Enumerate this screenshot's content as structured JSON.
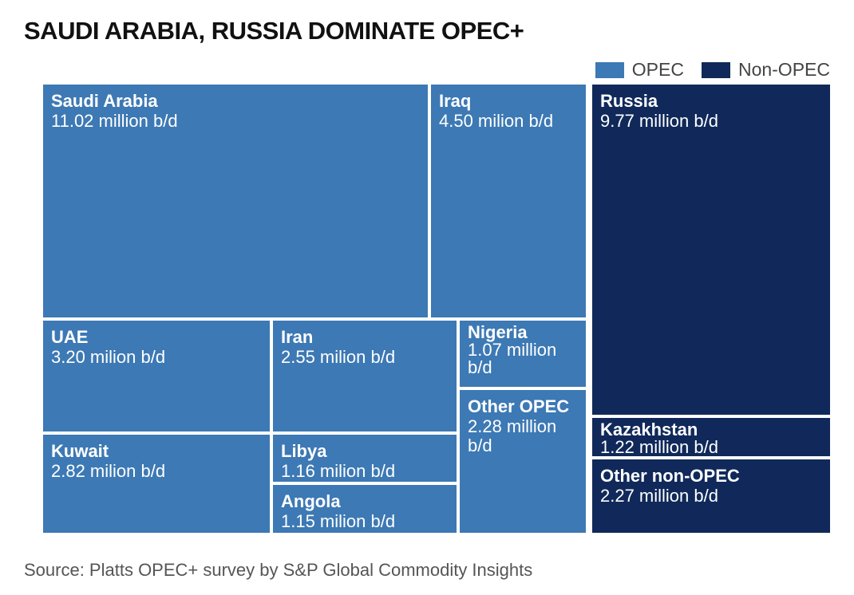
{
  "title": "SAUDI ARABIA, RUSSIA DOMINATE OPEC+",
  "legend": {
    "opec_label": "OPEC",
    "non_opec_label": "Non-OPEC"
  },
  "colors": {
    "opec": "#3D79B4",
    "non_opec": "#10295A",
    "border": "#FFFFFF",
    "title": "#111111",
    "source": "#555555"
  },
  "chart_data": {
    "type": "treemap",
    "title": "SAUDI ARABIA, RUSSIA DOMINATE OPEC+",
    "unit": "million b/d",
    "groups": [
      "OPEC",
      "Non-OPEC"
    ],
    "items": [
      {
        "name": "Saudi Arabia",
        "value": 11.02,
        "group": "OPEC",
        "label": "11.02 million b/d"
      },
      {
        "name": "Iraq",
        "value": 4.5,
        "group": "OPEC",
        "label": "4.50 milion b/d"
      },
      {
        "name": "UAE",
        "value": 3.2,
        "group": "OPEC",
        "label": "3.20 milion b/d"
      },
      {
        "name": "Iran",
        "value": 2.55,
        "group": "OPEC",
        "label": "2.55 milion b/d"
      },
      {
        "name": "Nigeria",
        "value": 1.07,
        "group": "OPEC",
        "label": "1.07 million b/d"
      },
      {
        "name": "Other OPEC",
        "value": 2.28,
        "group": "OPEC",
        "label": "2.28 million b/d"
      },
      {
        "name": "Kuwait",
        "value": 2.82,
        "group": "OPEC",
        "label": "2.82 milion b/d"
      },
      {
        "name": "Libya",
        "value": 1.16,
        "group": "OPEC",
        "label": "1.16 milion b/d"
      },
      {
        "name": "Angola",
        "value": 1.15,
        "group": "OPEC",
        "label": "1.15 milion b/d"
      },
      {
        "name": "Russia",
        "value": 9.77,
        "group": "Non-OPEC",
        "label": "9.77 million b/d"
      },
      {
        "name": "Kazakhstan",
        "value": 1.22,
        "group": "Non-OPEC",
        "label": "1.22 million b/d"
      },
      {
        "name": "Other non-OPEC",
        "value": 2.27,
        "group": "Non-OPEC",
        "label": "2.27 million b/d"
      }
    ]
  },
  "source": "Source: Platts OPEC+ survey by S&P Global Commodity Insights"
}
